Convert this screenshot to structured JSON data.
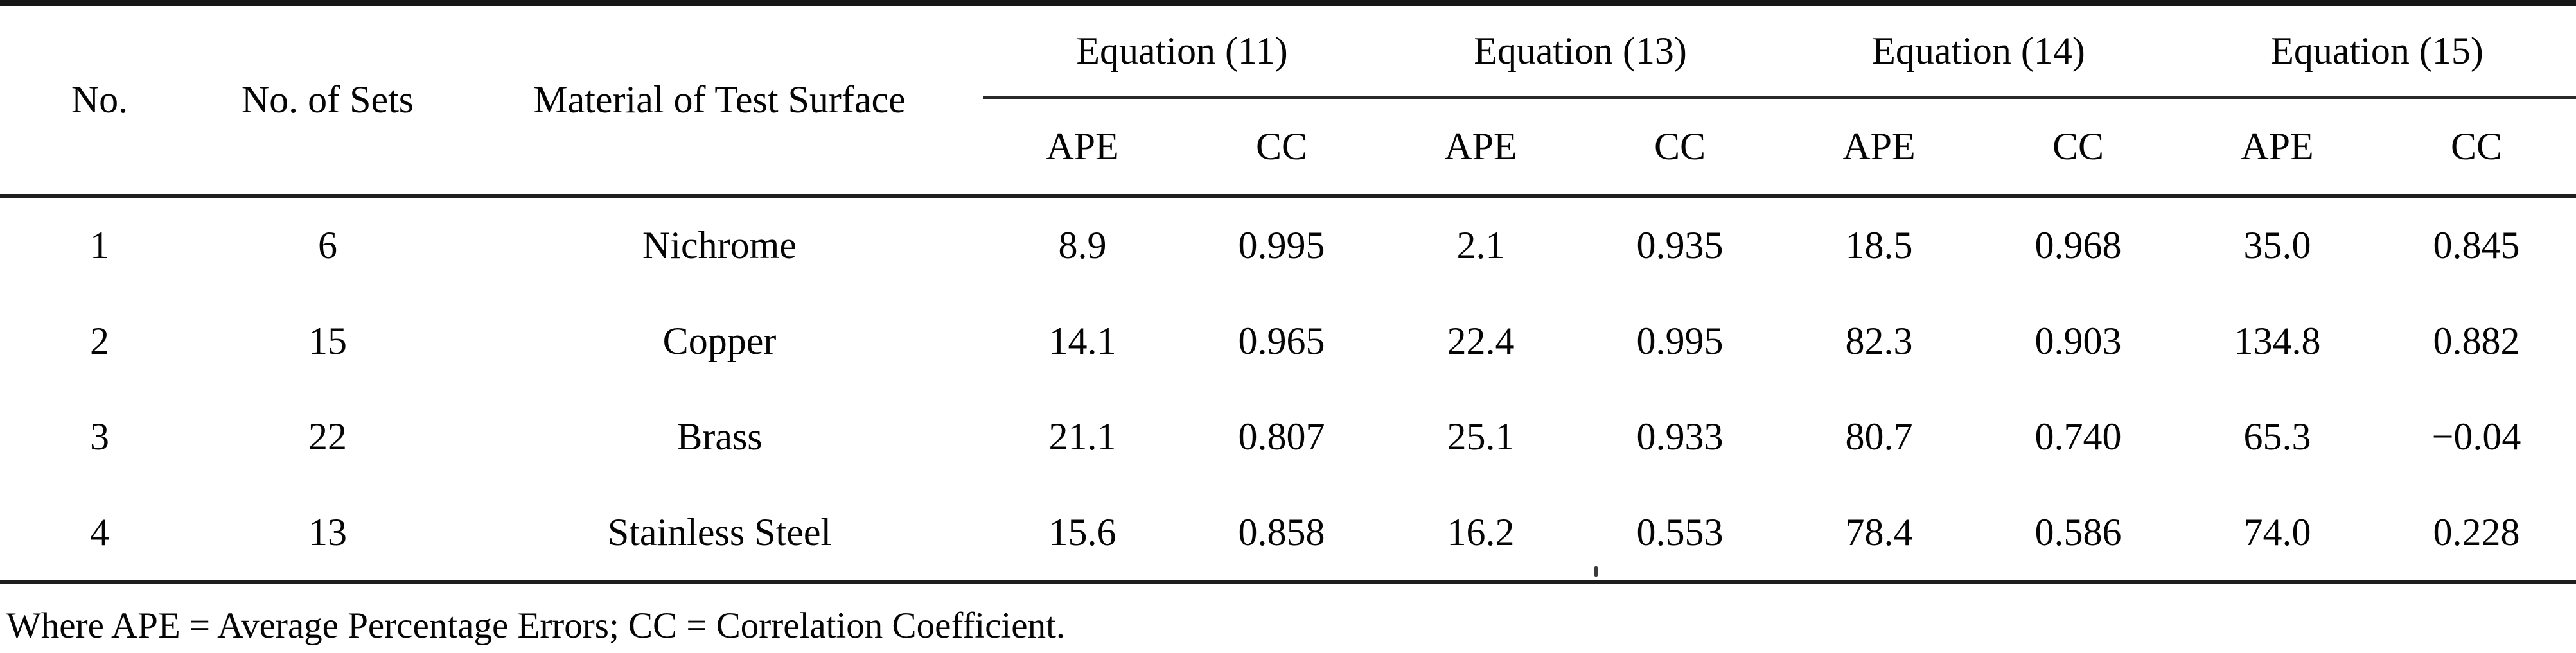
{
  "page": {
    "background": "#ffffff",
    "text_color": "#050505",
    "rule_color": "#1e1e1e"
  },
  "table": {
    "stub_headers": [
      "No.",
      "No. of Sets",
      "Material of Test Surface"
    ],
    "groups": [
      {
        "label": "Equation (11)"
      },
      {
        "label": "Equation (13)"
      },
      {
        "label": "Equation (14)"
      },
      {
        "label": "Equation (15)"
      }
    ],
    "sub_headers": [
      "APE",
      "CC",
      "APE",
      "CC",
      "APE",
      "CC",
      "APE",
      "CC"
    ],
    "rows": [
      [
        "1",
        "6",
        "Nichrome",
        "8.9",
        "0.995",
        "2.1",
        "0.935",
        "18.5",
        "0.968",
        "35.0",
        "0.845"
      ],
      [
        "2",
        "15",
        "Copper",
        "14.1",
        "0.965",
        "22.4",
        "0.995",
        "82.3",
        "0.903",
        "134.8",
        "0.882"
      ],
      [
        "3",
        "22",
        "Brass",
        "21.1",
        "0.807",
        "25.1",
        "0.933",
        "80.7",
        "0.740",
        "65.3",
        "−0.04"
      ],
      [
        "4",
        "13",
        "Stainless Steel",
        "15.6",
        "0.858",
        "16.2",
        "0.553",
        "78.4",
        "0.586",
        "74.0",
        "0.228"
      ]
    ],
    "footnote": "Where APE = Average Percentage Errors; CC = Correlation Coefficient."
  }
}
